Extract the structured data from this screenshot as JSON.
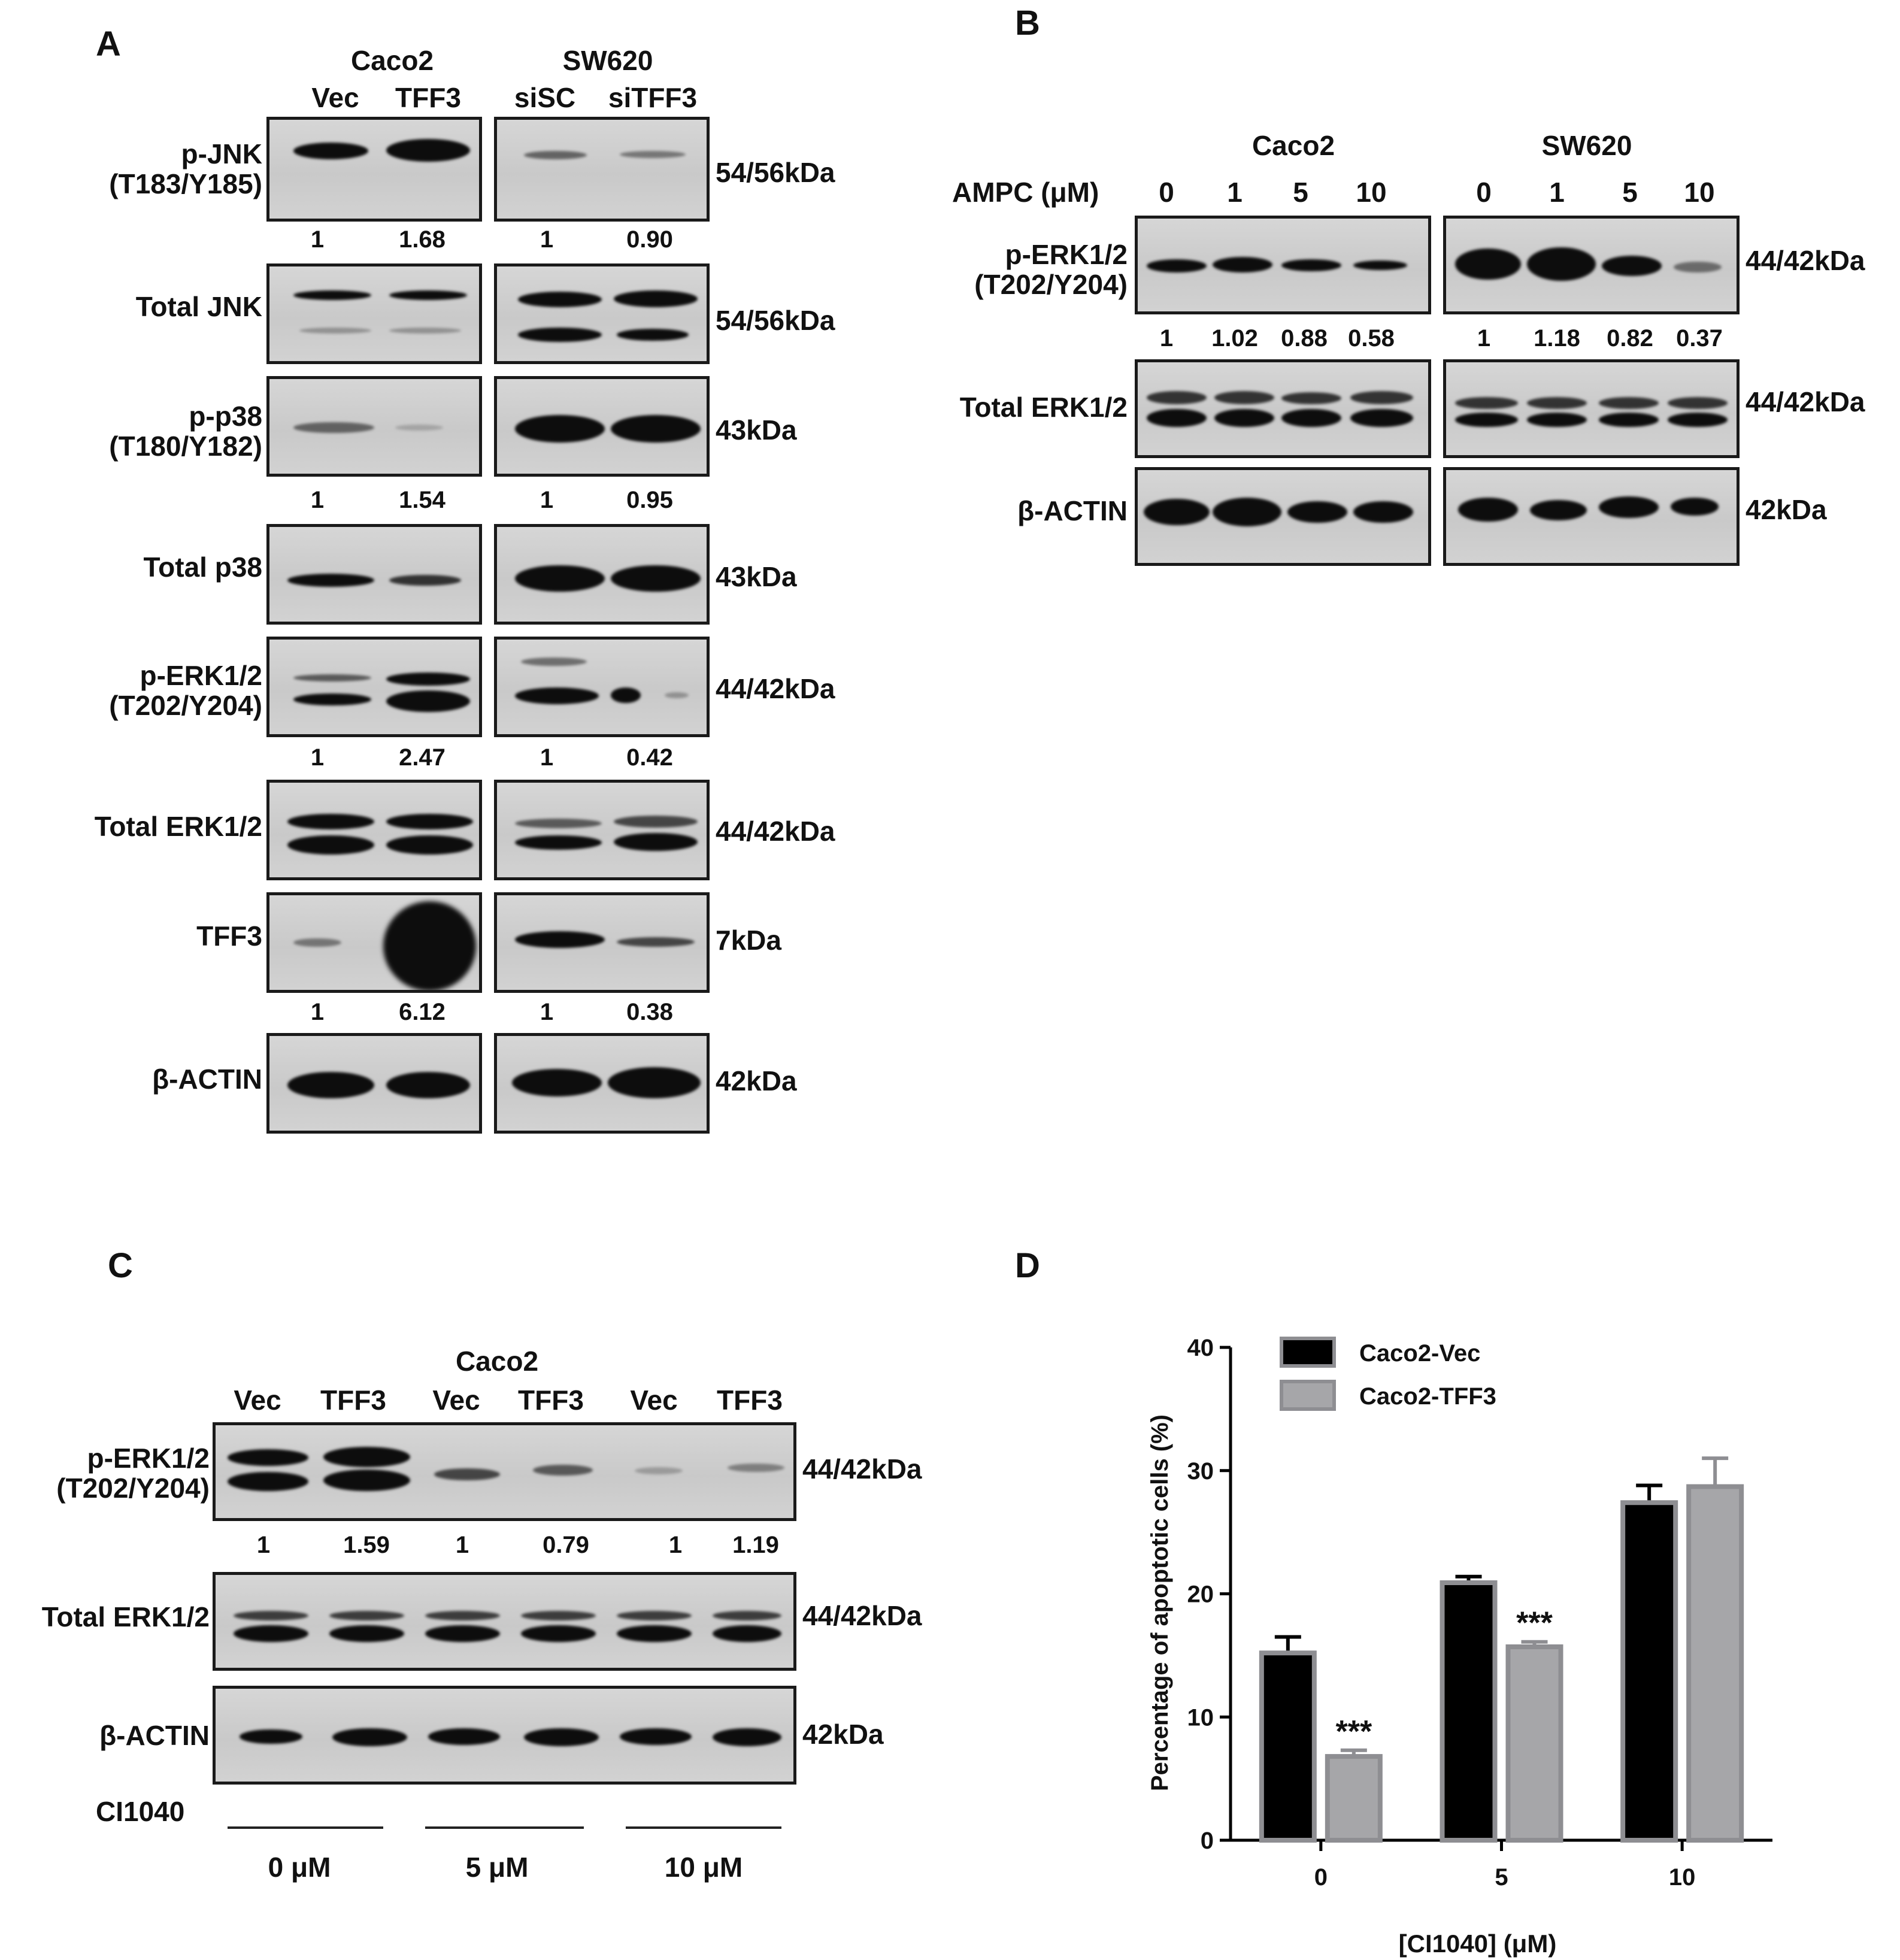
{
  "panels": {
    "A": {
      "letter": "A",
      "groups": [
        {
          "cell": "Caco2",
          "lanes": [
            "Vec",
            "TFF3"
          ]
        },
        {
          "cell": "SW620",
          "lanes": [
            "siSC",
            "siTFF3"
          ]
        }
      ],
      "rows": [
        {
          "label": [
            "p-JNK",
            "(T183/Y185)"
          ],
          "mw": "54/56kDa",
          "quant": [
            [
              "1",
              "1.68"
            ],
            [
              "1",
              "0.90"
            ]
          ]
        },
        {
          "label": [
            "Total JNK"
          ],
          "mw": "54/56kDa",
          "quant": null
        },
        {
          "label": [
            "p-p38",
            "(T180/Y182)"
          ],
          "mw": "43kDa",
          "quant": [
            [
              "1",
              "1.54"
            ],
            [
              "1",
              "0.95"
            ]
          ]
        },
        {
          "label": [
            "Total p38"
          ],
          "mw": "43kDa",
          "quant": null
        },
        {
          "label": [
            "p-ERK1/2",
            "(T202/Y204)"
          ],
          "mw": "44/42kDa",
          "quant": [
            [
              "1",
              "2.47"
            ],
            [
              "1",
              "0.42"
            ]
          ]
        },
        {
          "label": [
            "Total ERK1/2"
          ],
          "mw": "44/42kDa",
          "quant": null
        },
        {
          "label": [
            "TFF3"
          ],
          "mw": "7kDa",
          "quant": [
            [
              "1",
              "6.12"
            ],
            [
              "1",
              "0.38"
            ]
          ]
        },
        {
          "label": [
            "β-ACTIN"
          ],
          "mw": "42kDa",
          "quant": null
        }
      ]
    },
    "B": {
      "letter": "B",
      "treatment_label": "AMPC (μM)",
      "groups": [
        {
          "cell": "Caco2",
          "doses": [
            "0",
            "1",
            "5",
            "10"
          ]
        },
        {
          "cell": "SW620",
          "doses": [
            "0",
            "1",
            "5",
            "10"
          ]
        }
      ],
      "rows": [
        {
          "label": [
            "p-ERK1/2",
            "(T202/Y204)"
          ],
          "mw": "44/42kDa",
          "quant": [
            [
              "1",
              "1.02",
              "0.88",
              "0.58"
            ],
            [
              "1",
              "1.18",
              "0.82",
              "0.37"
            ]
          ]
        },
        {
          "label": [
            "Total ERK1/2"
          ],
          "mw": "44/42kDa",
          "quant": null
        },
        {
          "label": [
            "β-ACTIN"
          ],
          "mw": "42kDa",
          "quant": null
        }
      ]
    },
    "C": {
      "letter": "C",
      "cell": "Caco2",
      "lanes": [
        "Vec",
        "TFF3",
        "Vec",
        "TFF3",
        "Vec",
        "TFF3"
      ],
      "rows": [
        {
          "label": [
            "p-ERK1/2",
            "(T202/Y204)"
          ],
          "mw": "44/42kDa",
          "quant": [
            "1",
            "1.59",
            "1",
            "0.79",
            "1",
            "1.19"
          ]
        },
        {
          "label": [
            "Total ERK1/2"
          ],
          "mw": "44/42kDa",
          "quant": null
        },
        {
          "label": [
            "β-ACTIN"
          ],
          "mw": "42kDa",
          "quant": null
        }
      ],
      "treatment_label": "CI1040",
      "doses": [
        "0 μM",
        "5 μM",
        "10 μM"
      ]
    },
    "D": {
      "letter": "D"
    }
  },
  "chart_data": {
    "type": "bar",
    "categories": [
      "0",
      "5",
      "10"
    ],
    "series": [
      {
        "name": "Caco2-Vec",
        "values": [
          15.2,
          20.9,
          27.4
        ],
        "errors": [
          1.3,
          0.5,
          1.4
        ],
        "color": "#000000"
      },
      {
        "name": "Caco2-TFF3",
        "values": [
          6.8,
          15.7,
          28.7
        ],
        "errors": [
          0.5,
          0.4,
          2.3
        ],
        "color": "#a6a6a9"
      }
    ],
    "annotations": [
      {
        "category": "0",
        "series": "Caco2-TFF3",
        "text": "***"
      },
      {
        "category": "5",
        "series": "Caco2-TFF3",
        "text": "***"
      }
    ],
    "xlabel": "[CI1040] (μM)",
    "ylabel": "Percentage of apoptotic cells (%)",
    "ylim": [
      0,
      40
    ],
    "yticks": [
      "0",
      "10",
      "20",
      "30",
      "40"
    ],
    "legend_position": "top-left",
    "grid": false
  }
}
